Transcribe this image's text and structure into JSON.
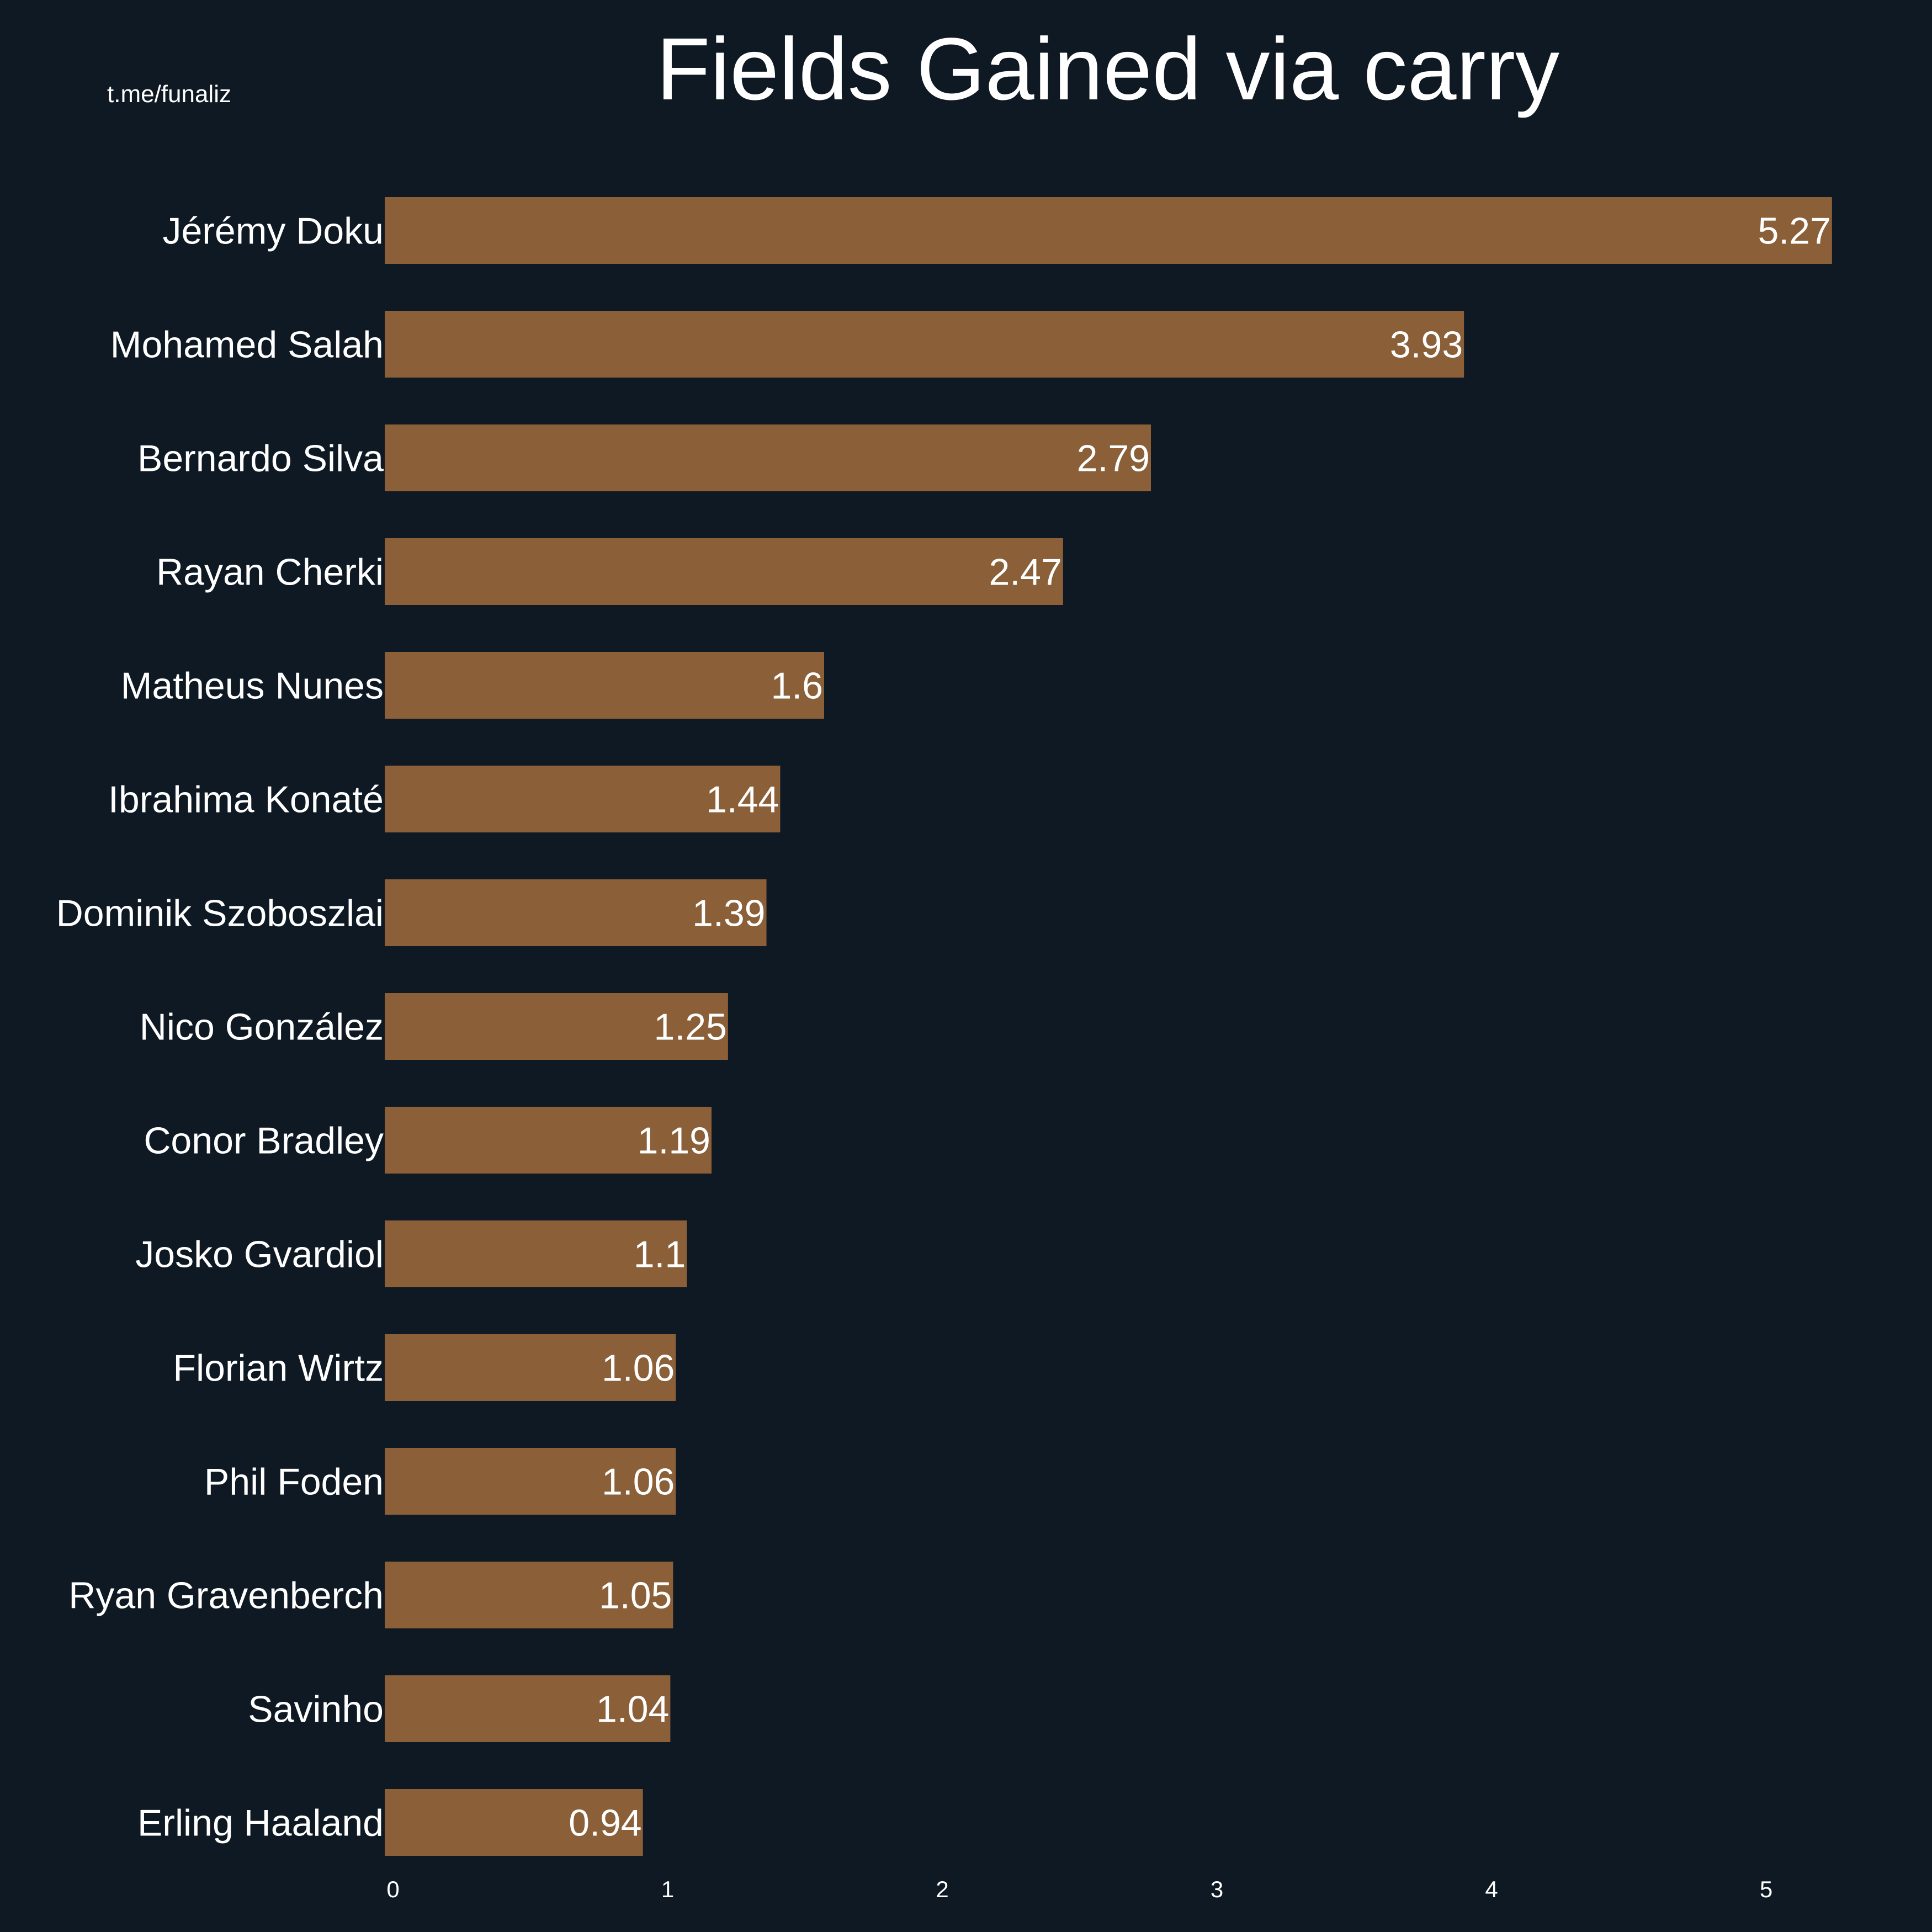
{
  "chart_data": {
    "type": "bar",
    "orientation": "horizontal",
    "title": "Fields Gained via carry",
    "watermark": "t.me/funaliz",
    "categories": [
      "Jérémy Doku",
      "Mohamed Salah",
      "Bernardo Silva",
      "Rayan Cherki",
      "Matheus Nunes",
      "Ibrahima Konaté",
      "Dominik Szoboszlai",
      "Nico González",
      "Conor Bradley",
      "Josko Gvardiol",
      "Florian Wirtz",
      "Phil Foden",
      "Ryan Gravenberch",
      "Savinho",
      "Erling Haaland"
    ],
    "values": [
      5.27,
      3.93,
      2.79,
      2.47,
      1.6,
      1.44,
      1.39,
      1.25,
      1.19,
      1.1,
      1.06,
      1.06,
      1.05,
      1.04,
      0.94
    ],
    "xticks": [
      0,
      1,
      2,
      3,
      4,
      5
    ],
    "xlim": [
      0,
      5.5
    ],
    "xlabel": "",
    "ylabel": "",
    "grid": false,
    "bar_color": "#8b5f38",
    "background": "#0f1923"
  }
}
